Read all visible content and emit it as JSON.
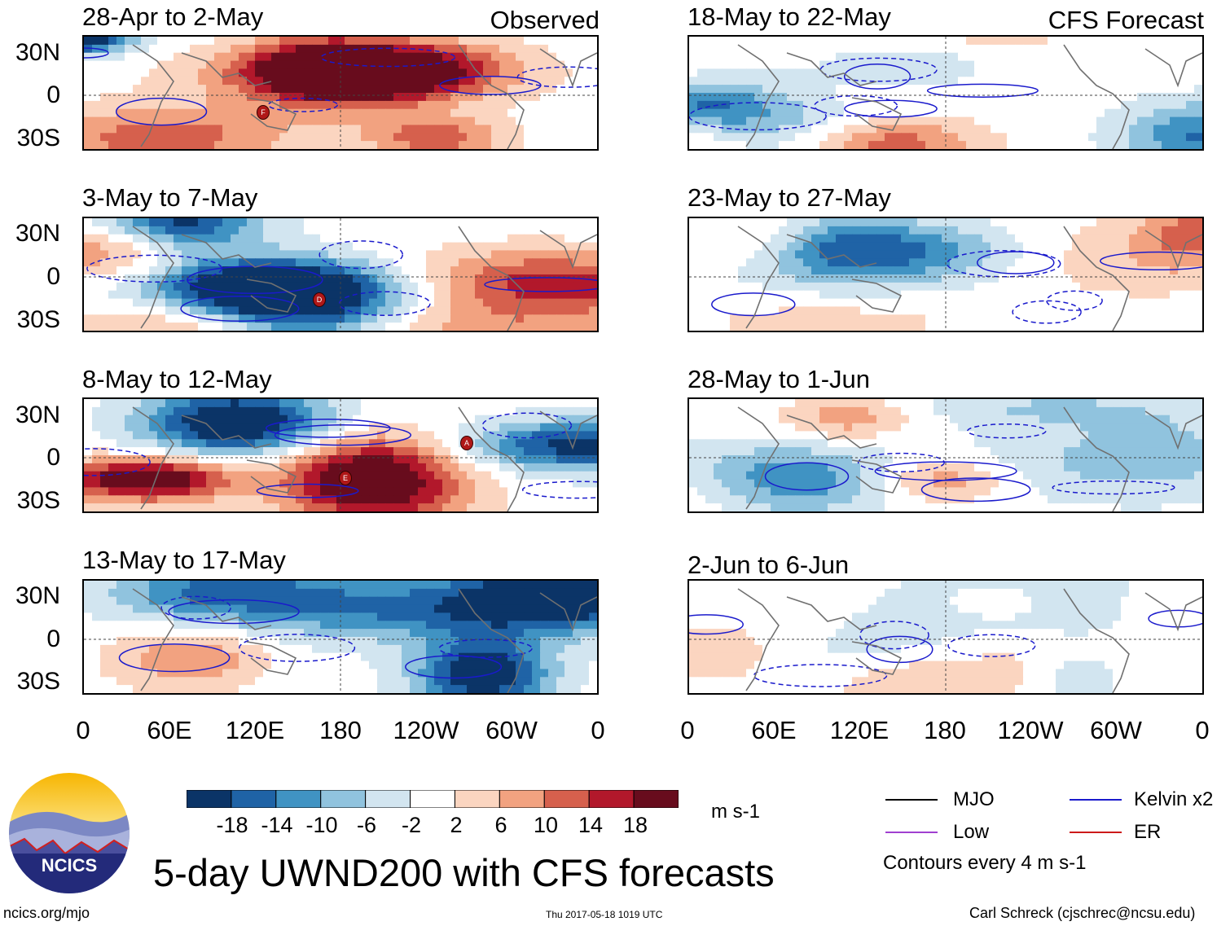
{
  "chart_data": {
    "type": "heatmap",
    "title": "5-day UWND200 with CFS forecasts",
    "units": "m s-1",
    "contour_note": "Contours every 4 m s-1",
    "x_ticks": [
      "0",
      "60E",
      "120E",
      "180",
      "120W",
      "60W",
      "0"
    ],
    "y_ticks": [
      "30N",
      "0",
      "30S"
    ],
    "columns": [
      {
        "tag": "Observed",
        "panels": [
          {
            "title": "28-Apr to 2-May"
          },
          {
            "title": "3-May to 7-May"
          },
          {
            "title": "8-May to 12-May"
          },
          {
            "title": "13-May to 17-May"
          }
        ]
      },
      {
        "tag": "CFS Forecast",
        "panels": [
          {
            "title": "18-May to 22-May"
          },
          {
            "title": "23-May to 27-May"
          },
          {
            "title": "28-May to 1-Jun"
          },
          {
            "title": "2-Jun to 6-Jun"
          }
        ]
      }
    ],
    "colorbar": {
      "boundaries": [
        "-18",
        "-14",
        "-10",
        "-6",
        "-2",
        "2",
        "6",
        "10",
        "14",
        "18"
      ],
      "colors": [
        "#0b3467",
        "#1f63a6",
        "#4093c3",
        "#90c3de",
        "#d2e5f0",
        "#ffffff",
        "#fbd5c0",
        "#f2a280",
        "#d6604d",
        "#b2182b",
        "#680c1d"
      ]
    },
    "storm_markers": [
      {
        "panel": "28-Apr to 2-May",
        "label": "F"
      },
      {
        "panel": "3-May to 7-May",
        "label": "D"
      },
      {
        "panel": "8-May to 12-May",
        "label": "A"
      },
      {
        "panel": "8-May to 12-May",
        "label": "E"
      }
    ],
    "legend": [
      {
        "label": "MJO",
        "color": "#000000"
      },
      {
        "label": "Kelvin x2",
        "color": "#1a1acc"
      },
      {
        "label": "Low",
        "color": "#a040d0"
      },
      {
        "label": "ER",
        "color": "#cc1a1a"
      }
    ]
  },
  "logo": {
    "text": "NCICS"
  },
  "footer": {
    "url": "ncics.org/mjo",
    "timestamp": "Thu 2017-05-18 1019 UTC",
    "author": "Carl Schreck (cjschrec@ncsu.edu)"
  }
}
